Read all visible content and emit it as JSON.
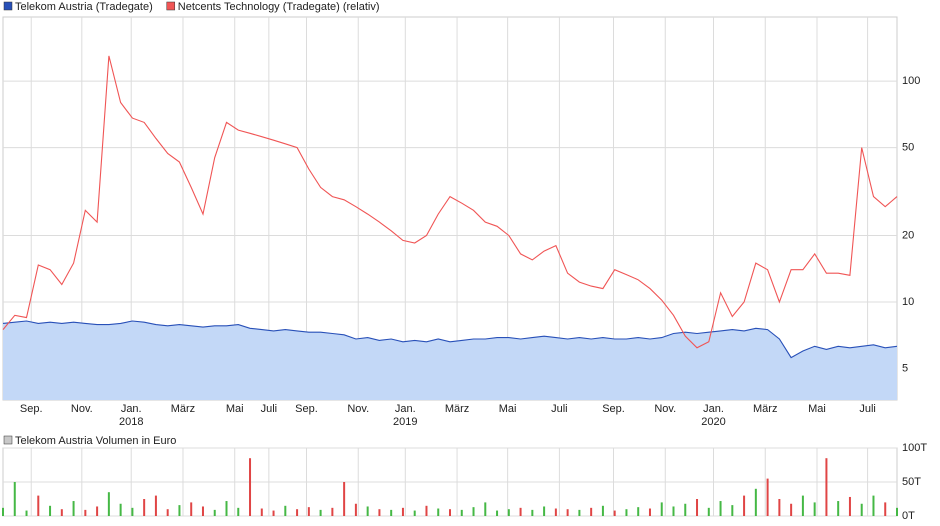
{
  "chart_data": [
    {
      "type": "line",
      "log_scale": true,
      "grid": true,
      "xlim": [
        0,
        760
      ],
      "ylim": [
        3.6,
        195
      ],
      "yticks": [
        5,
        10,
        20,
        50,
        100
      ],
      "xticks": [
        {
          "value": 24,
          "label": "Sep."
        },
        {
          "value": 67,
          "label": "Nov."
        },
        {
          "value": 109,
          "label": "Jan."
        },
        {
          "value": 153,
          "label": "März"
        },
        {
          "value": 197,
          "label": "Mai"
        },
        {
          "value": 226,
          "label": "Juli"
        },
        {
          "value": 258,
          "label": "Sep."
        },
        {
          "value": 302,
          "label": "Nov."
        },
        {
          "value": 342,
          "label": "Jan."
        },
        {
          "value": 386,
          "label": "März"
        },
        {
          "value": 429,
          "label": "Mai"
        },
        {
          "value": 473,
          "label": "Juli"
        },
        {
          "value": 519,
          "label": "Sep."
        },
        {
          "value": 563,
          "label": "Nov."
        },
        {
          "value": 604,
          "label": "Jan."
        },
        {
          "value": 648,
          "label": "März"
        },
        {
          "value": 692,
          "label": "Mai"
        },
        {
          "value": 735,
          "label": "Juli"
        }
      ],
      "x_year_ticks": [
        {
          "value": 109,
          "label": "2018"
        },
        {
          "value": 342,
          "label": "2019"
        },
        {
          "value": 604,
          "label": "2020"
        }
      ],
      "x": [
        0,
        10,
        20,
        30,
        40,
        50,
        60,
        70,
        80,
        90,
        100,
        110,
        120,
        130,
        140,
        150,
        160,
        170,
        180,
        190,
        200,
        210,
        220,
        230,
        240,
        250,
        260,
        270,
        280,
        290,
        300,
        310,
        320,
        330,
        340,
        350,
        360,
        370,
        380,
        390,
        400,
        410,
        420,
        430,
        440,
        450,
        460,
        470,
        480,
        490,
        500,
        510,
        520,
        530,
        540,
        550,
        560,
        570,
        580,
        590,
        600,
        610,
        620,
        630,
        640,
        650,
        660,
        670,
        680,
        690,
        700,
        710,
        720,
        730,
        740,
        750,
        760
      ],
      "series": [
        {
          "name": "Telekom Austria (Tradegate)",
          "color": "#2850b8",
          "fill": "#c3d8f7",
          "values": [
            8.0,
            8.1,
            8.2,
            8.0,
            8.1,
            8.0,
            8.1,
            8.0,
            7.9,
            7.9,
            8.0,
            8.2,
            8.1,
            7.9,
            7.8,
            7.9,
            7.8,
            7.7,
            7.8,
            7.8,
            7.9,
            7.6,
            7.5,
            7.4,
            7.5,
            7.4,
            7.3,
            7.3,
            7.2,
            7.1,
            6.8,
            6.9,
            6.7,
            6.8,
            6.6,
            6.7,
            6.6,
            6.8,
            6.6,
            6.7,
            6.8,
            6.8,
            6.9,
            6.9,
            6.8,
            6.9,
            7.0,
            6.9,
            6.8,
            6.9,
            6.8,
            6.9,
            6.8,
            6.8,
            6.9,
            6.8,
            6.9,
            7.2,
            7.3,
            7.2,
            7.3,
            7.4,
            7.5,
            7.4,
            7.6,
            7.5,
            6.8,
            5.6,
            6.0,
            6.3,
            6.1,
            6.3,
            6.2,
            6.3,
            6.4,
            6.2,
            6.3
          ]
        },
        {
          "name": "Netcents Technology (Tradegate) (relativ)",
          "color": "#f05555",
          "values": [
            7.5,
            8.7,
            8.5,
            14.7,
            14,
            12,
            15,
            26,
            23,
            130,
            80,
            68,
            65,
            55,
            47,
            43,
            33,
            25,
            45,
            65,
            60,
            58,
            56,
            54,
            52,
            50,
            40,
            33,
            30,
            29,
            27,
            25,
            23,
            21,
            19,
            18.5,
            20,
            25,
            30,
            28,
            26,
            23,
            22,
            20,
            16.5,
            15.5,
            17,
            18,
            13.5,
            12.3,
            11.8,
            11.5,
            14,
            13.3,
            12.6,
            11.5,
            10.2,
            8.7,
            7,
            6.2,
            6.6,
            11,
            8.6,
            10,
            15,
            14,
            10,
            14,
            14,
            16.5,
            13.5,
            13.5,
            13.2,
            50,
            30,
            27,
            30
          ]
        }
      ]
    },
    {
      "type": "bar",
      "grid": true,
      "legend": "Telekom Austria Volumen in Euro",
      "legend_color": "#c8c8c8",
      "up_color": "#45b845",
      "down_color": "#e04545",
      "ylim": [
        0,
        100
      ],
      "yticks": [
        {
          "value": 0,
          "label": "0T"
        },
        {
          "value": 50,
          "label": "50T"
        },
        {
          "value": 100,
          "label": "100T"
        }
      ],
      "values": [
        12,
        50,
        8,
        30,
        15,
        10,
        22,
        9,
        14,
        35,
        18,
        12,
        25,
        30,
        10,
        16,
        20,
        14,
        9,
        22,
        12,
        85,
        11,
        8,
        15,
        10,
        13,
        9,
        12,
        50,
        18,
        14,
        10,
        9,
        12,
        8,
        15,
        11,
        10,
        9,
        13,
        20,
        8,
        10,
        12,
        9,
        14,
        11,
        10,
        9,
        12,
        15,
        8,
        10,
        13,
        11,
        20,
        14,
        18,
        25,
        12,
        22,
        16,
        30,
        40,
        55,
        25,
        18,
        30,
        20,
        85,
        22,
        28,
        18,
        30,
        20,
        12
      ]
    }
  ]
}
